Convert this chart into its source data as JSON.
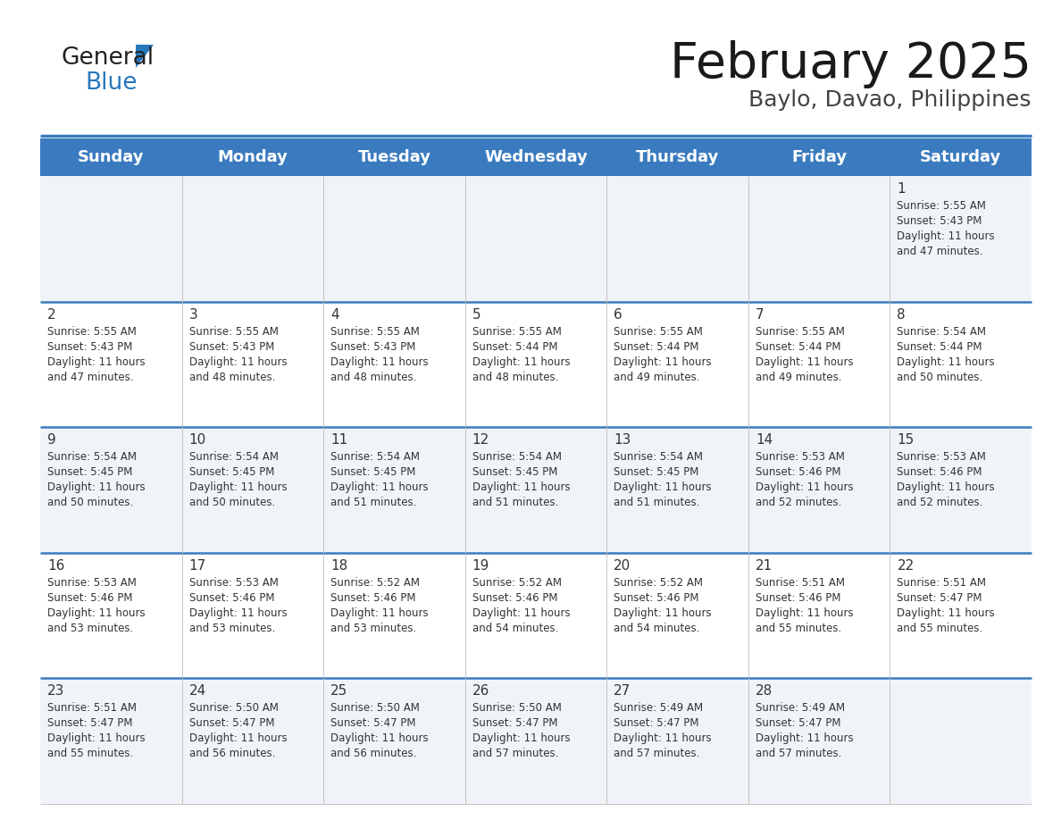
{
  "title": "February 2025",
  "subtitle": "Baylo, Davao, Philippines",
  "header_bg_color": "#3a7bbf",
  "header_text_color": "#ffffff",
  "row_bg_1": "#f0f4f8",
  "row_bg_2": "#ffffff",
  "separator_color": "#3a7bbf",
  "text_color": "#333333",
  "days_of_week": [
    "Sunday",
    "Monday",
    "Tuesday",
    "Wednesday",
    "Thursday",
    "Friday",
    "Saturday"
  ],
  "logo_general_color": "#222222",
  "logo_blue_color": "#2878be",
  "title_fontsize": 40,
  "subtitle_fontsize": 18,
  "header_fontsize": 13,
  "day_num_fontsize": 11,
  "cell_text_fontsize": 8.5,
  "calendar_data": [
    [
      {
        "day": "",
        "sunrise": "",
        "sunset": "",
        "daylight": ""
      },
      {
        "day": "",
        "sunrise": "",
        "sunset": "",
        "daylight": ""
      },
      {
        "day": "",
        "sunrise": "",
        "sunset": "",
        "daylight": ""
      },
      {
        "day": "",
        "sunrise": "",
        "sunset": "",
        "daylight": ""
      },
      {
        "day": "",
        "sunrise": "",
        "sunset": "",
        "daylight": ""
      },
      {
        "day": "",
        "sunrise": "",
        "sunset": "",
        "daylight": ""
      },
      {
        "day": "1",
        "sunrise": "5:55 AM",
        "sunset": "5:43 PM",
        "daylight": "11 hours and 47 minutes."
      }
    ],
    [
      {
        "day": "2",
        "sunrise": "5:55 AM",
        "sunset": "5:43 PM",
        "daylight": "11 hours and 47 minutes."
      },
      {
        "day": "3",
        "sunrise": "5:55 AM",
        "sunset": "5:43 PM",
        "daylight": "11 hours and 48 minutes."
      },
      {
        "day": "4",
        "sunrise": "5:55 AM",
        "sunset": "5:43 PM",
        "daylight": "11 hours and 48 minutes."
      },
      {
        "day": "5",
        "sunrise": "5:55 AM",
        "sunset": "5:44 PM",
        "daylight": "11 hours and 48 minutes."
      },
      {
        "day": "6",
        "sunrise": "5:55 AM",
        "sunset": "5:44 PM",
        "daylight": "11 hours and 49 minutes."
      },
      {
        "day": "7",
        "sunrise": "5:55 AM",
        "sunset": "5:44 PM",
        "daylight": "11 hours and 49 minutes."
      },
      {
        "day": "8",
        "sunrise": "5:54 AM",
        "sunset": "5:44 PM",
        "daylight": "11 hours and 50 minutes."
      }
    ],
    [
      {
        "day": "9",
        "sunrise": "5:54 AM",
        "sunset": "5:45 PM",
        "daylight": "11 hours and 50 minutes."
      },
      {
        "day": "10",
        "sunrise": "5:54 AM",
        "sunset": "5:45 PM",
        "daylight": "11 hours and 50 minutes."
      },
      {
        "day": "11",
        "sunrise": "5:54 AM",
        "sunset": "5:45 PM",
        "daylight": "11 hours and 51 minutes."
      },
      {
        "day": "12",
        "sunrise": "5:54 AM",
        "sunset": "5:45 PM",
        "daylight": "11 hours and 51 minutes."
      },
      {
        "day": "13",
        "sunrise": "5:54 AM",
        "sunset": "5:45 PM",
        "daylight": "11 hours and 51 minutes."
      },
      {
        "day": "14",
        "sunrise": "5:53 AM",
        "sunset": "5:46 PM",
        "daylight": "11 hours and 52 minutes."
      },
      {
        "day": "15",
        "sunrise": "5:53 AM",
        "sunset": "5:46 PM",
        "daylight": "11 hours and 52 minutes."
      }
    ],
    [
      {
        "day": "16",
        "sunrise": "5:53 AM",
        "sunset": "5:46 PM",
        "daylight": "11 hours and 53 minutes."
      },
      {
        "day": "17",
        "sunrise": "5:53 AM",
        "sunset": "5:46 PM",
        "daylight": "11 hours and 53 minutes."
      },
      {
        "day": "18",
        "sunrise": "5:52 AM",
        "sunset": "5:46 PM",
        "daylight": "11 hours and 53 minutes."
      },
      {
        "day": "19",
        "sunrise": "5:52 AM",
        "sunset": "5:46 PM",
        "daylight": "11 hours and 54 minutes."
      },
      {
        "day": "20",
        "sunrise": "5:52 AM",
        "sunset": "5:46 PM",
        "daylight": "11 hours and 54 minutes."
      },
      {
        "day": "21",
        "sunrise": "5:51 AM",
        "sunset": "5:46 PM",
        "daylight": "11 hours and 55 minutes."
      },
      {
        "day": "22",
        "sunrise": "5:51 AM",
        "sunset": "5:47 PM",
        "daylight": "11 hours and 55 minutes."
      }
    ],
    [
      {
        "day": "23",
        "sunrise": "5:51 AM",
        "sunset": "5:47 PM",
        "daylight": "11 hours and 55 minutes."
      },
      {
        "day": "24",
        "sunrise": "5:50 AM",
        "sunset": "5:47 PM",
        "daylight": "11 hours and 56 minutes."
      },
      {
        "day": "25",
        "sunrise": "5:50 AM",
        "sunset": "5:47 PM",
        "daylight": "11 hours and 56 minutes."
      },
      {
        "day": "26",
        "sunrise": "5:50 AM",
        "sunset": "5:47 PM",
        "daylight": "11 hours and 57 minutes."
      },
      {
        "day": "27",
        "sunrise": "5:49 AM",
        "sunset": "5:47 PM",
        "daylight": "11 hours and 57 minutes."
      },
      {
        "day": "28",
        "sunrise": "5:49 AM",
        "sunset": "5:47 PM",
        "daylight": "11 hours and 57 minutes."
      },
      {
        "day": "",
        "sunrise": "",
        "sunset": "",
        "daylight": ""
      }
    ]
  ]
}
